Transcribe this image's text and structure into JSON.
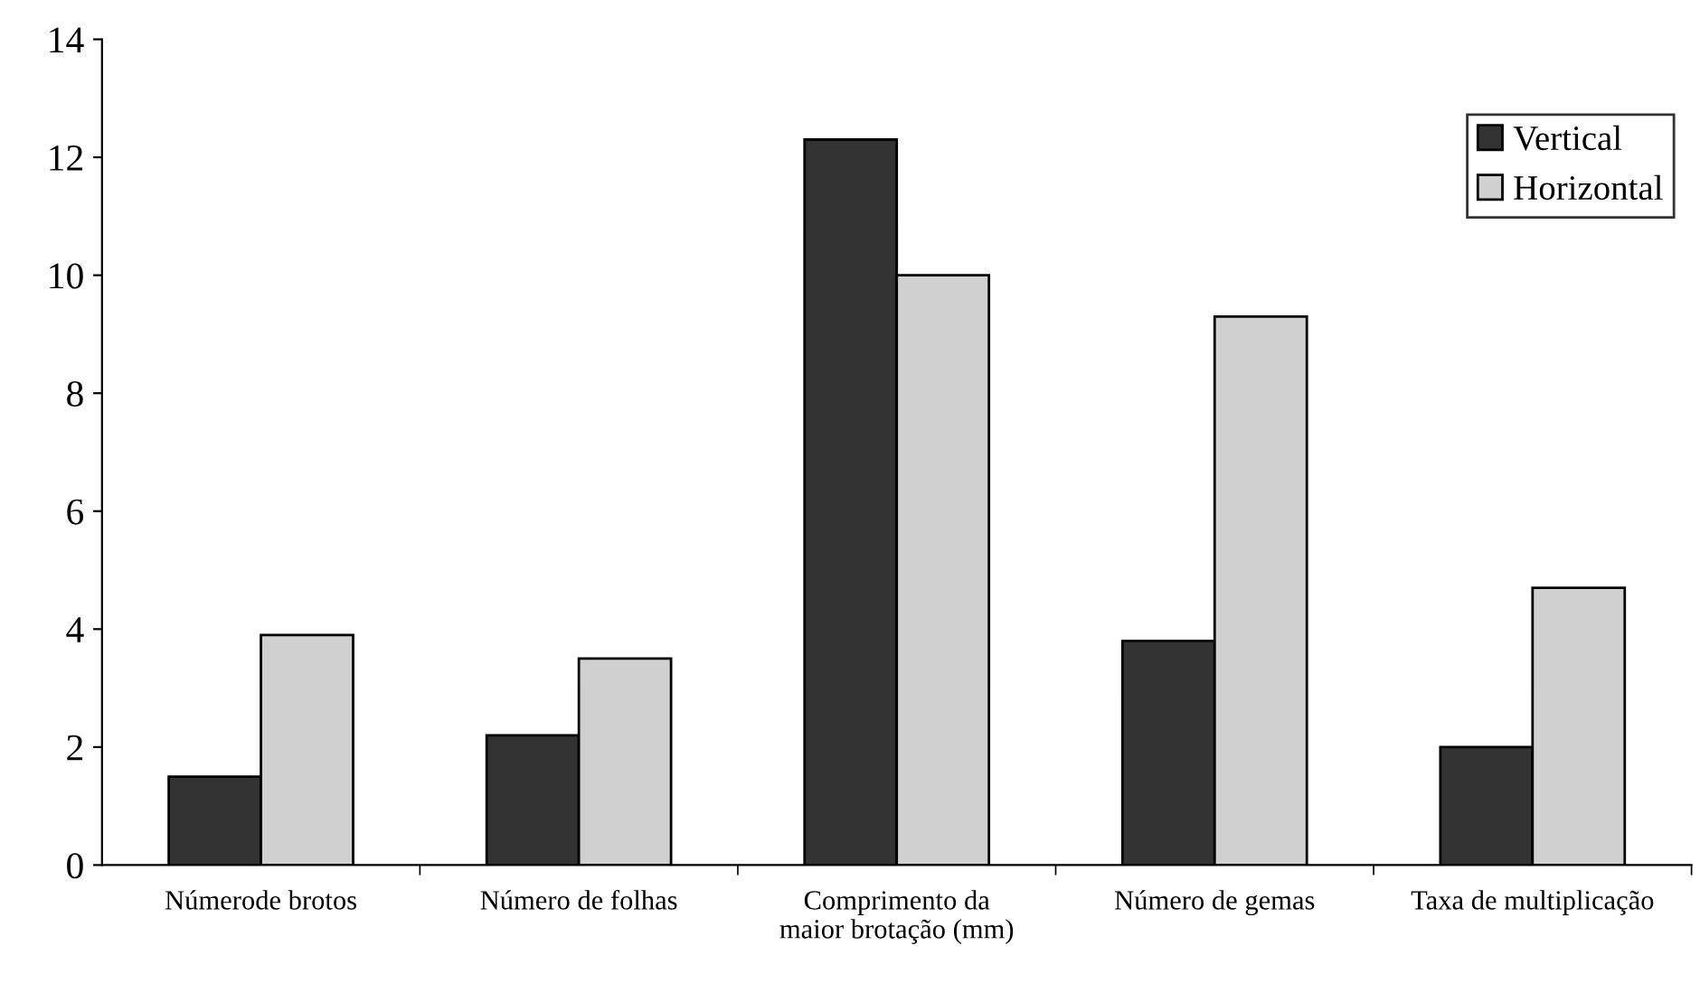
{
  "chart_data": {
    "type": "bar",
    "categories": [
      "Númerode brotos",
      "Número de folhas",
      "Comprimento da\nmaior brotação (mm)",
      "Número de gemas",
      "Taxa de multiplicação"
    ],
    "series": [
      {
        "name": "Vertical",
        "color": "#333333",
        "values": [
          1.5,
          2.2,
          12.3,
          3.8,
          2.0
        ]
      },
      {
        "name": "Horizontal",
        "color": "#d0d0d0",
        "values": [
          3.9,
          3.5,
          10.0,
          9.3,
          4.7
        ]
      }
    ],
    "ylim": [
      0,
      14
    ],
    "yticks": [
      0,
      2,
      4,
      6,
      8,
      10,
      12,
      14
    ],
    "grid": false,
    "legend": "top right"
  }
}
